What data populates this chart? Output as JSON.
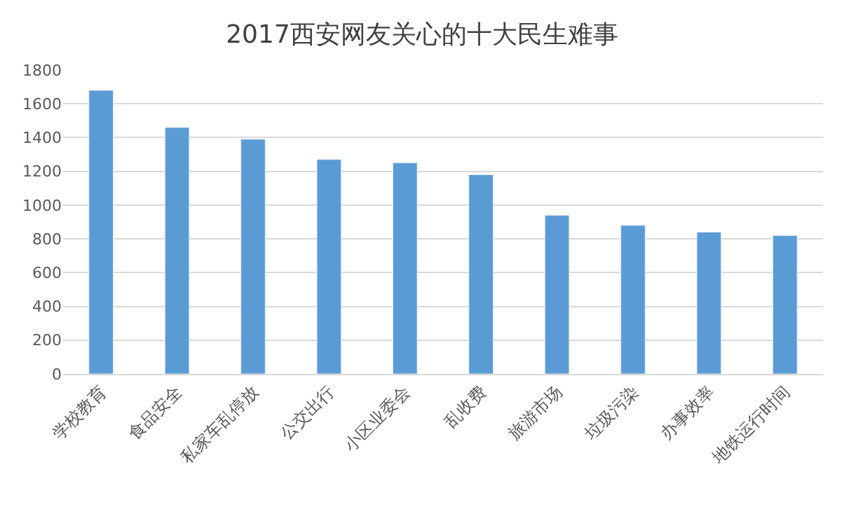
{
  "chart_data": {
    "type": "bar",
    "title": "2017西安网友关心的十大民生难事",
    "categories": [
      "学校教育",
      "食品安全",
      "私家车乱停放",
      "公交出行",
      "小区业委会",
      "乱收费",
      "旅游市场",
      "垃圾污染",
      "办事效率",
      "地铁运行时间"
    ],
    "values": [
      1680,
      1460,
      1390,
      1270,
      1250,
      1180,
      940,
      880,
      840,
      820
    ],
    "color": "#5b9bd5",
    "ylim": [
      0,
      1800
    ],
    "yticks": [
      0,
      200,
      400,
      600,
      800,
      1000,
      1200,
      1400,
      1600,
      1800
    ],
    "grid": "y",
    "legend": false
  }
}
